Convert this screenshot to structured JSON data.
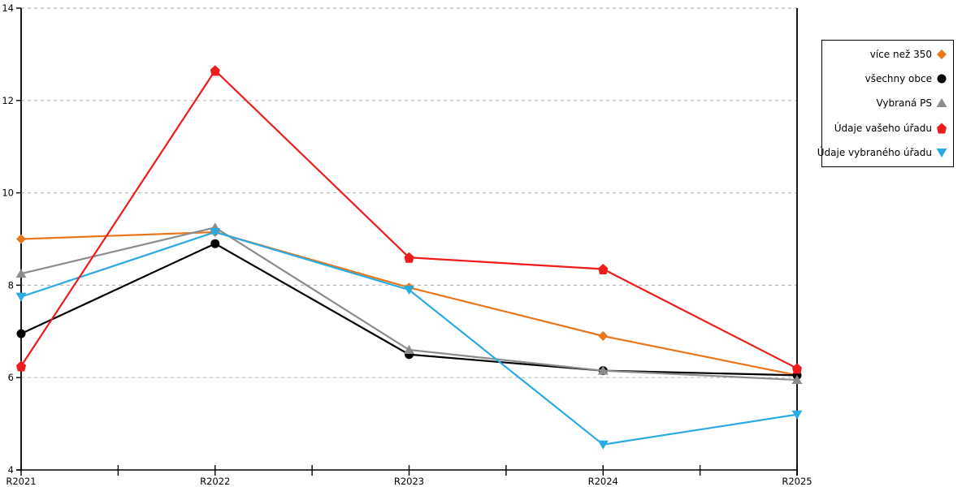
{
  "chart_data": {
    "type": "line",
    "title": "",
    "xlabel": "",
    "ylabel": "",
    "categories": [
      "R2021",
      "R2022",
      "R2023",
      "R2024",
      "R2025"
    ],
    "series": [
      {
        "name": "více než 350",
        "color": "#E8761B",
        "marker": "diamond",
        "values": [
          9.0,
          9.15,
          7.95,
          6.9,
          6.05
        ]
      },
      {
        "name": "všechny obce",
        "color": "#000000",
        "marker": "circle",
        "values": [
          6.95,
          8.9,
          6.5,
          6.15,
          6.05
        ]
      },
      {
        "name": "Vybraná PS",
        "color": "#8C8C8C",
        "marker": "triangle-up",
        "values": [
          8.25,
          9.25,
          6.6,
          6.15,
          5.95
        ]
      },
      {
        "name": "Údaje vašeho úřadu",
        "color": "#EC1C1C",
        "marker": "pentagon",
        "values": [
          6.25,
          12.65,
          8.6,
          8.35,
          6.2
        ]
      },
      {
        "name": "Údaje vybraného úřadu",
        "color": "#29ABE2",
        "marker": "triangle-down",
        "values": [
          7.75,
          9.15,
          7.9,
          4.55,
          5.2
        ]
      }
    ],
    "ylim": [
      4,
      14
    ],
    "yticks": [
      4,
      6,
      8,
      10,
      12,
      14
    ],
    "ytick_labels": [
      "4",
      "6",
      "8",
      "10",
      "12",
      "14"
    ],
    "grid": "horizontal-dashed",
    "minor_x_ticks_between_categories": true,
    "legend_position": "right",
    "draw_order": [
      0,
      1,
      2,
      4,
      3
    ]
  },
  "colors": {
    "background": "#FFFFFF",
    "axis": "#000000",
    "gridline": "#BBBBBB",
    "tick_label": "#000000"
  }
}
